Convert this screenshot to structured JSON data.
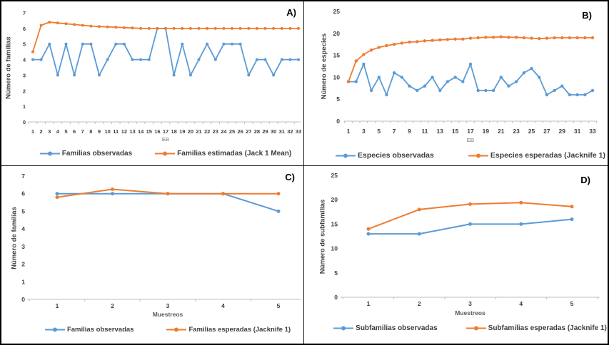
{
  "figure": {
    "background": "#ffffff",
    "border_color": "#000000"
  },
  "colors": {
    "observed_series": "#5B9BD5",
    "expected_series": "#ED7D31",
    "axis_line": "#BFBFBF",
    "tick_label": "#404040",
    "axis_title_gray": "#9B9B9B",
    "axis_title_dark": "#595959",
    "legend_text": "#3D3D3D",
    "panel_letter": "#000000"
  },
  "chart_data": [
    {
      "id": "A",
      "panel_label": "A)",
      "type": "line",
      "title": "",
      "ylabel": "Número de familias",
      "xlabel": "EB",
      "ylim": [
        0,
        7
      ],
      "ytick_step": 1,
      "xtick_every": 1,
      "grid": false,
      "legend_position": "bottom",
      "categories": [
        1,
        2,
        3,
        4,
        5,
        6,
        7,
        8,
        9,
        10,
        11,
        12,
        13,
        14,
        15,
        16,
        17,
        18,
        19,
        20,
        21,
        22,
        23,
        24,
        25,
        26,
        27,
        28,
        29,
        30,
        31,
        32,
        33
      ],
      "series": [
        {
          "name": "Familias observadas",
          "color": "#5B9BD5",
          "values": [
            4,
            4,
            5,
            3,
            5,
            3,
            5,
            5,
            3,
            4,
            5,
            5,
            4,
            4,
            4,
            6,
            6,
            3,
            5,
            3,
            4,
            5,
            4,
            5,
            5,
            5,
            3,
            4,
            4,
            3,
            4,
            4,
            4
          ]
        },
        {
          "name": "Familias estimadas (Jack 1 Mean)",
          "color": "#ED7D31",
          "values": [
            4.5,
            6.2,
            6.4,
            6.35,
            6.3,
            6.25,
            6.2,
            6.15,
            6.12,
            6.1,
            6.08,
            6.05,
            6.03,
            6,
            6,
            6,
            6,
            6,
            6,
            6,
            6,
            6,
            6,
            6,
            6,
            6,
            6,
            6,
            6,
            6,
            6,
            6,
            6
          ]
        }
      ]
    },
    {
      "id": "B",
      "panel_label": "B)",
      "type": "line",
      "title": "",
      "ylabel": "Número de especies",
      "xlabel": "EB",
      "ylim": [
        0,
        25
      ],
      "ytick_step": 5,
      "xtick_every": 2,
      "grid": false,
      "legend_position": "bottom",
      "categories": [
        1,
        2,
        3,
        4,
        5,
        6,
        7,
        8,
        9,
        10,
        11,
        12,
        13,
        14,
        15,
        16,
        17,
        18,
        19,
        20,
        21,
        22,
        23,
        24,
        25,
        26,
        27,
        28,
        29,
        30,
        31,
        32,
        33
      ],
      "series": [
        {
          "name": "Especies observadas",
          "color": "#5B9BD5",
          "values": [
            9,
            9,
            13,
            7,
            10,
            6,
            11,
            10,
            8,
            7,
            8,
            10,
            7,
            9,
            10,
            9,
            13,
            7,
            7,
            7,
            10,
            8,
            9,
            11,
            12,
            10,
            6,
            7,
            8,
            6,
            6,
            6,
            7
          ]
        },
        {
          "name": "Especies esperadas (Jacknife 1)",
          "color": "#ED7D31",
          "values": [
            9,
            13.7,
            15.2,
            16.2,
            16.8,
            17.2,
            17.5,
            17.8,
            18,
            18.1,
            18.3,
            18.4,
            18.5,
            18.6,
            18.7,
            18.7,
            18.9,
            19,
            19.1,
            19.1,
            19.2,
            19.1,
            19.1,
            19,
            18.9,
            18.8,
            18.9,
            19,
            19,
            19,
            19,
            19,
            19
          ]
        }
      ]
    },
    {
      "id": "C",
      "panel_label": "C)",
      "type": "line",
      "title": "",
      "ylabel": "Número de familias",
      "xlabel": "Muestreos",
      "ylim": [
        0,
        7
      ],
      "ytick_step": 1,
      "xtick_every": 1,
      "grid": false,
      "legend_position": "bottom",
      "categories": [
        1,
        2,
        3,
        4,
        5
      ],
      "series": [
        {
          "name": "Familias observadas",
          "color": "#5B9BD5",
          "values": [
            6,
            6,
            6,
            6,
            5
          ]
        },
        {
          "name": "Familias esperadas (Jacknife 1)",
          "color": "#ED7D31",
          "values": [
            5.8,
            6.25,
            6,
            6,
            6
          ]
        }
      ]
    },
    {
      "id": "D",
      "panel_label": "D)",
      "type": "line",
      "title": "",
      "ylabel": "Número de subfamilias",
      "xlabel": "Muestreos",
      "ylim": [
        0,
        25
      ],
      "ytick_step": 5,
      "xtick_every": 1,
      "grid": false,
      "legend_position": "bottom",
      "categories": [
        1,
        2,
        3,
        4,
        5
      ],
      "series": [
        {
          "name": "Subfamilias observadas",
          "color": "#5B9BD5",
          "values": [
            13,
            13,
            15,
            15,
            16
          ]
        },
        {
          "name": "Subfamilias esperadas (Jacknife 1)",
          "color": "#ED7D31",
          "values": [
            14,
            18,
            19.1,
            19.4,
            18.6
          ]
        }
      ]
    }
  ]
}
